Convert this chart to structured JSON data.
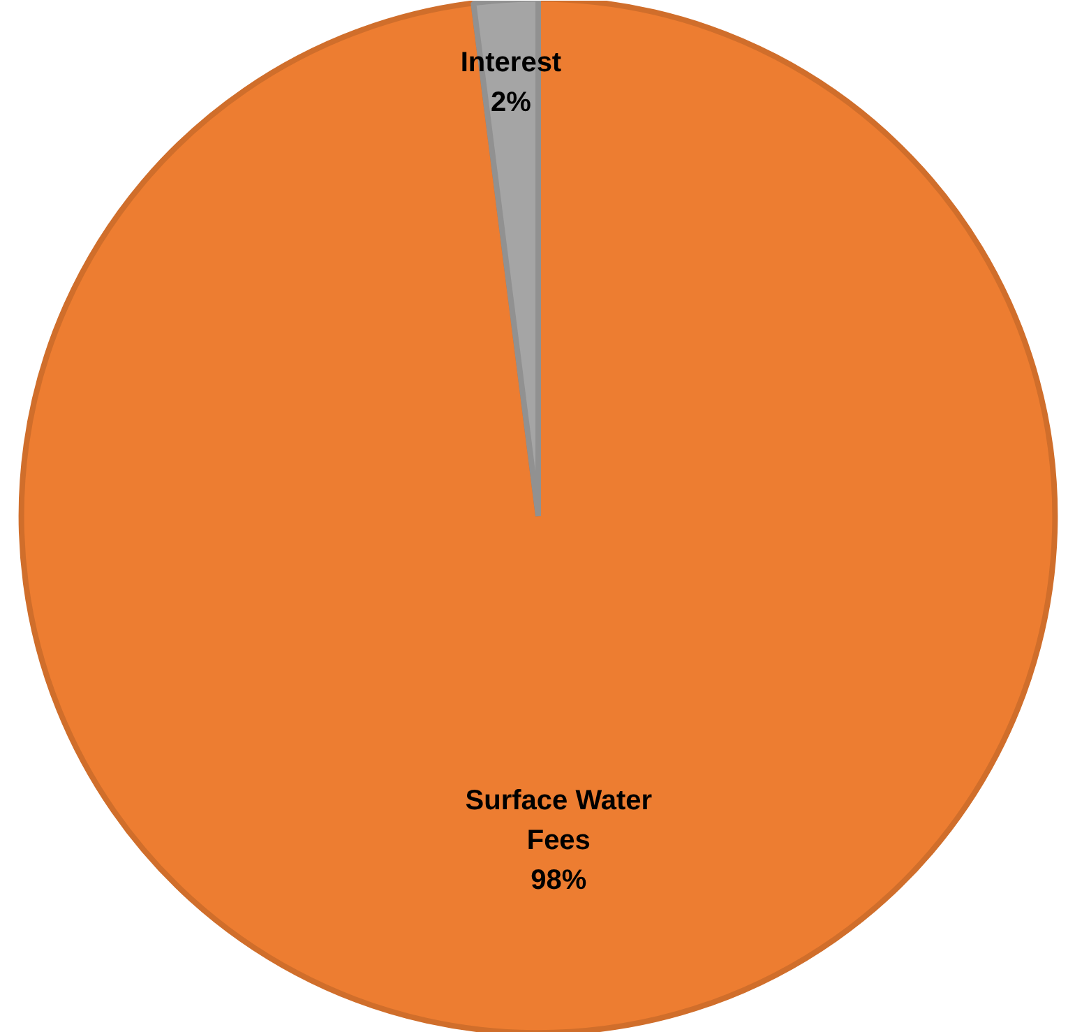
{
  "chart_data": {
    "type": "pie",
    "categories": [
      "Surface Water Fees",
      "Interest"
    ],
    "values": [
      98,
      2
    ],
    "value_labels": [
      "98%",
      "2%"
    ],
    "colors": [
      "#ed7d31",
      "#a5a5a5"
    ],
    "legend": false
  }
}
